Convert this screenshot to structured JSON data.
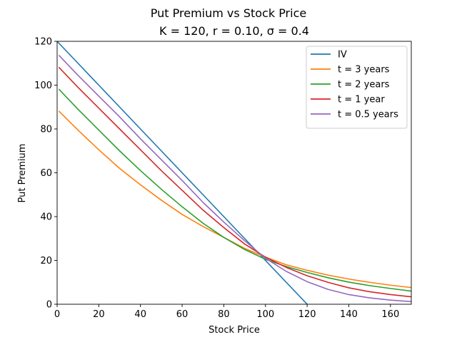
{
  "chart_data": {
    "type": "line",
    "title": "Put Premium vs Stock Price",
    "subtitle": "K = 120, r = 0.10, σ = 0.4",
    "xlabel": "Stock Price",
    "ylabel": "Put Premium",
    "xlim": [
      0,
      170
    ],
    "ylim": [
      0,
      120
    ],
    "xticks": [
      0,
      20,
      40,
      60,
      80,
      100,
      120,
      140,
      160
    ],
    "yticks": [
      0,
      20,
      40,
      60,
      80,
      100,
      120
    ],
    "grid": false,
    "legend_position": "top-right",
    "series": [
      {
        "name": "IV",
        "color": "#1f77b4",
        "x": [
          0,
          10,
          20,
          30,
          40,
          50,
          60,
          70,
          80,
          90,
          100,
          110,
          120
        ],
        "y": [
          120,
          110,
          100,
          90,
          80,
          70,
          60,
          50,
          40,
          30,
          20,
          10,
          0
        ]
      },
      {
        "name": "t = 3 years",
        "color": "#ff7f0e",
        "x": [
          1,
          10,
          20,
          30,
          40,
          50,
          60,
          70,
          80,
          90,
          100,
          110,
          120,
          130,
          140,
          150,
          160,
          170
        ],
        "y": [
          88,
          79.5,
          70.5,
          62,
          54.5,
          47.5,
          41,
          35.5,
          30.5,
          25.5,
          21.5,
          18,
          15.5,
          13.3,
          11.5,
          10,
          8.7,
          7.6
        ]
      },
      {
        "name": "t = 2 years",
        "color": "#2ca02c",
        "x": [
          1,
          10,
          20,
          30,
          40,
          50,
          60,
          70,
          80,
          90,
          100,
          110,
          120,
          130,
          140,
          150,
          160,
          170
        ],
        "y": [
          98,
          89,
          79.5,
          70,
          61,
          52.5,
          44.5,
          37,
          30.5,
          25,
          20.5,
          17.2,
          14.5,
          12.1,
          10.1,
          8.5,
          7.2,
          6
        ]
      },
      {
        "name": "t = 1 year",
        "color": "#d62728",
        "x": [
          1,
          10,
          20,
          30,
          40,
          50,
          60,
          70,
          80,
          90,
          100,
          110,
          120,
          130,
          140,
          150,
          160,
          170
        ],
        "y": [
          108,
          99,
          89.5,
          80,
          70.5,
          61,
          52,
          43,
          35,
          27.5,
          21.5,
          16.8,
          13,
          10,
          7.5,
          5.7,
          4.4,
          3.4
        ]
      },
      {
        "name": "t = 0.5 years",
        "color": "#9467bd",
        "x": [
          1,
          10,
          20,
          30,
          40,
          50,
          60,
          70,
          80,
          90,
          100,
          110,
          120,
          130,
          140,
          150,
          160,
          170
        ],
        "y": [
          113.5,
          104.5,
          95,
          85.5,
          75.5,
          66,
          56.5,
          46.5,
          37.5,
          29,
          21,
          15,
          10.3,
          6.8,
          4.4,
          2.9,
          1.9,
          1.2
        ]
      }
    ]
  }
}
